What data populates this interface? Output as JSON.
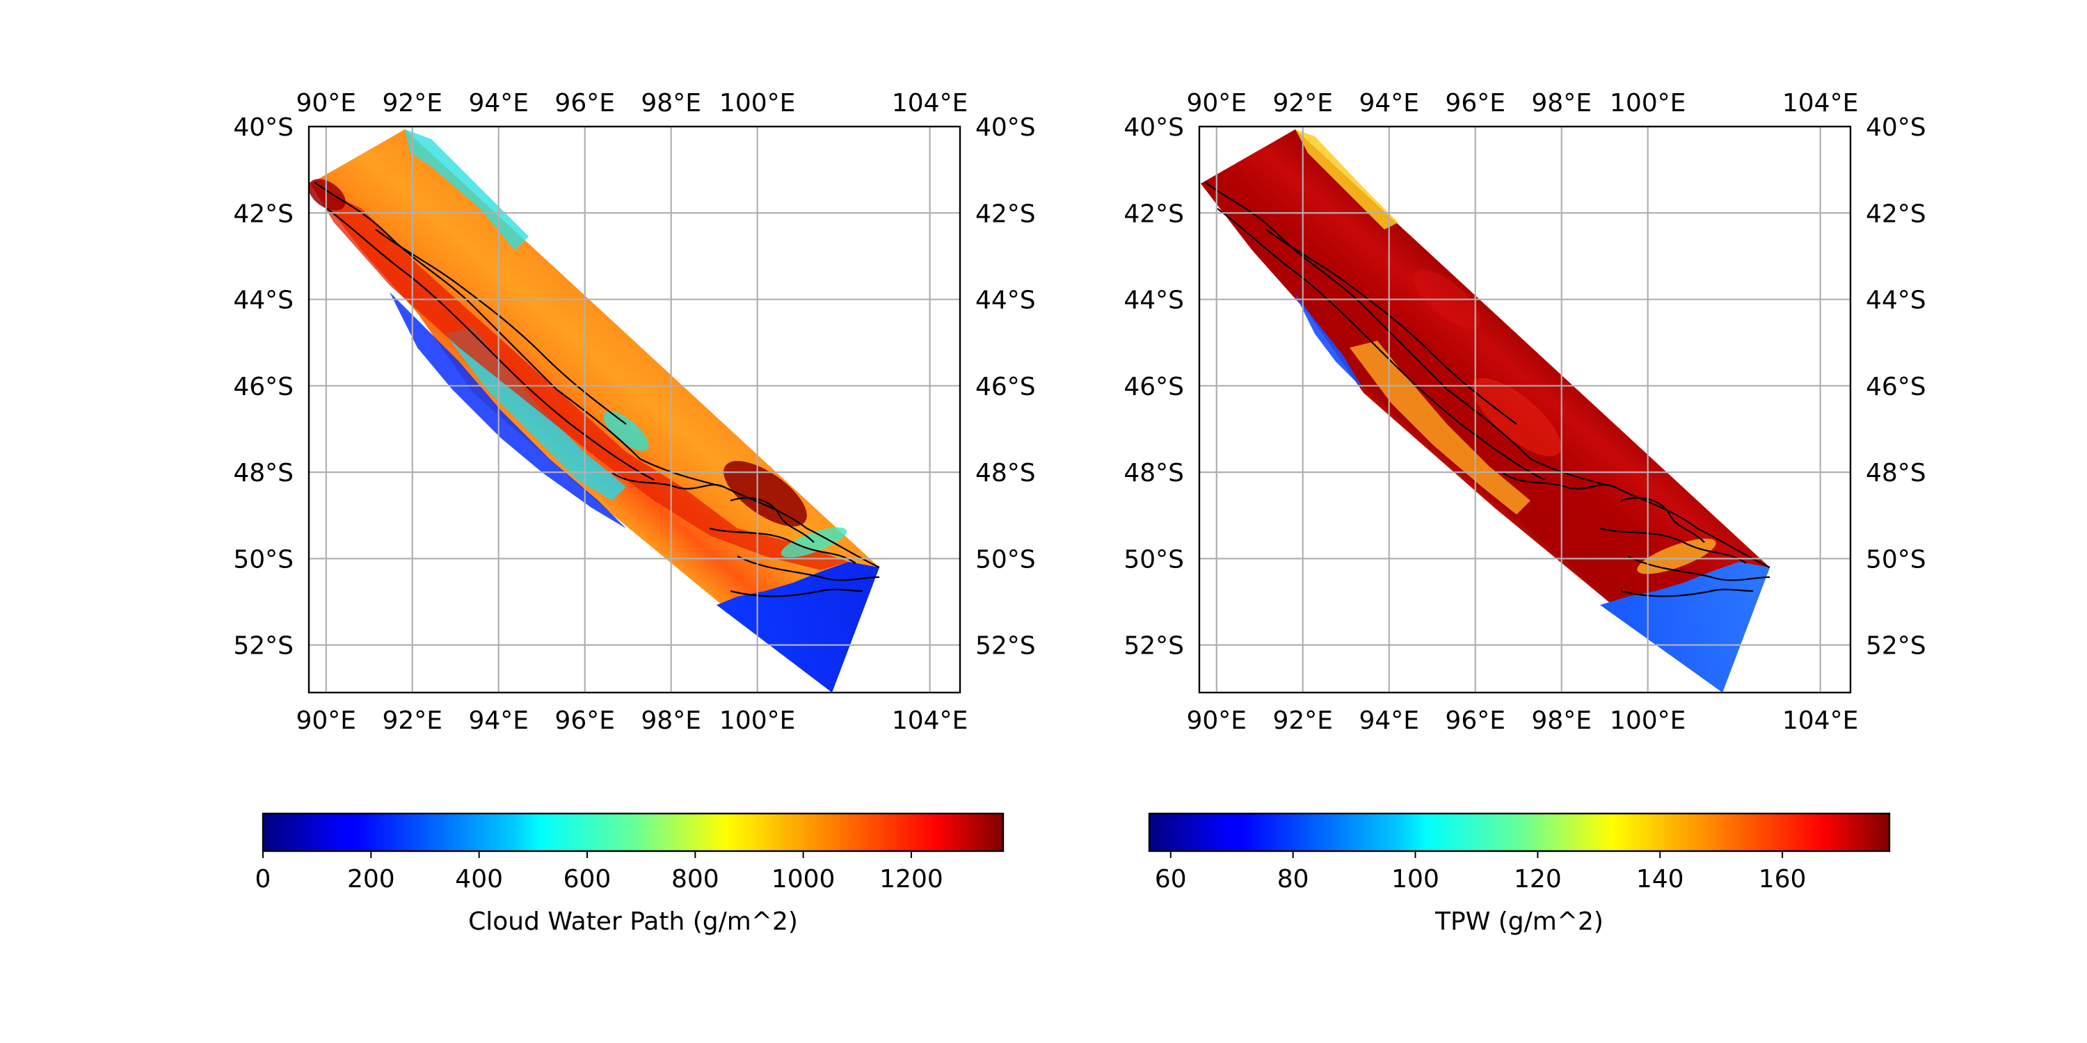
{
  "maps": [
    {
      "id": "cwp",
      "lon_ticks": [
        "90°E",
        "92°E",
        "94°E",
        "96°E",
        "98°E",
        "100°E",
        "104°E"
      ],
      "lat_ticks": [
        "40°S",
        "42°S",
        "44°S",
        "46°S",
        "48°S",
        "50°S",
        "52°S"
      ],
      "field": "Cloud Water Path",
      "colorbar": {
        "label": "Cloud Water Path (g/m^2)",
        "ticks": [
          "0",
          "200",
          "400",
          "600",
          "800",
          "1000",
          "1200"
        ],
        "tick_values": [
          0,
          200,
          400,
          600,
          800,
          1000,
          1200
        ],
        "range": [
          0,
          1370
        ]
      }
    },
    {
      "id": "tpw",
      "lon_ticks": [
        "90°E",
        "92°E",
        "94°E",
        "96°E",
        "98°E",
        "100°E",
        "104°E"
      ],
      "lat_ticks": [
        "40°S",
        "42°S",
        "44°S",
        "46°S",
        "48°S",
        "50°S",
        "52°S"
      ],
      "field": "TPW",
      "colorbar": {
        "label": "TPW (g/m^2)",
        "ticks": [
          "60",
          "80",
          "100",
          "120",
          "140",
          "160"
        ],
        "tick_values": [
          60,
          80,
          100,
          120,
          140,
          160
        ],
        "range": [
          56.5,
          177.5
        ]
      }
    }
  ],
  "lon_tick_values": [
    90,
    92,
    94,
    96,
    98,
    100,
    104
  ],
  "lat_tick_values": [
    -40,
    -42,
    -44,
    -46,
    -48,
    -50,
    -52
  ],
  "extent": {
    "lon": [
      89.6,
      104.7
    ],
    "lat": [
      -40.0,
      -53.1
    ]
  },
  "colormap": "jet"
}
